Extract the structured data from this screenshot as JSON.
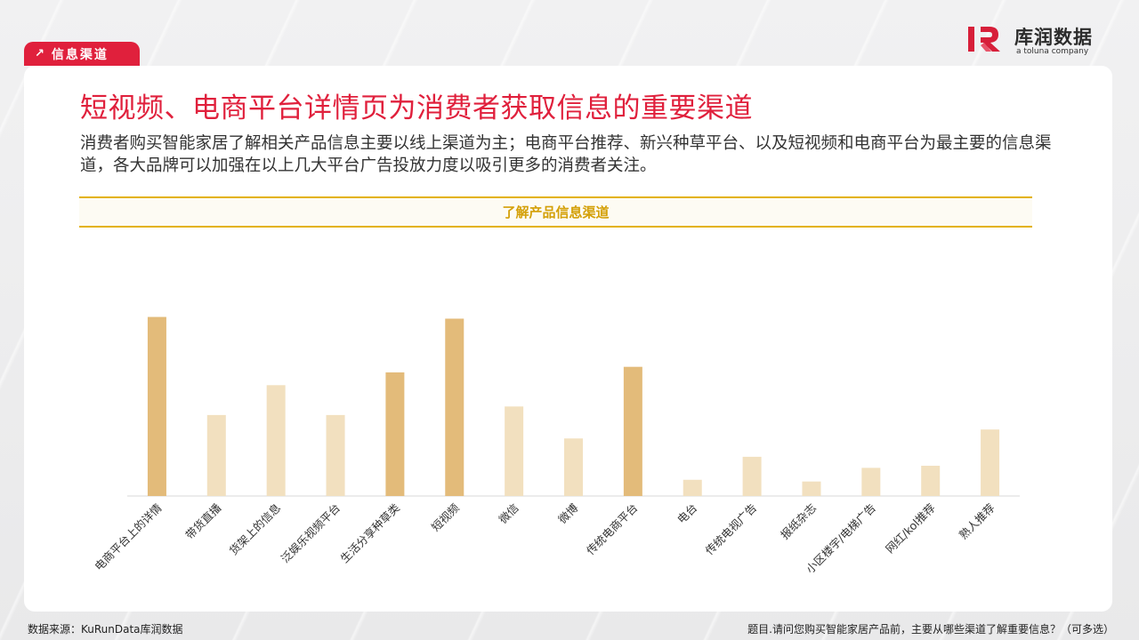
{
  "section_tag": {
    "arrow": "↗",
    "label": "信息渠道"
  },
  "logo": {
    "cn": "库润数据",
    "en": "a toluna company",
    "brand_color": "#d71f3a"
  },
  "title": "短视频、电商平台详情页为消费者获取信息的重要渠道",
  "description": "消费者购买智能家居了解相关产品信息主要以线上渠道为主；电商平台推荐、新兴种草平台、以及短视频和电商平台为最主要的信息渠道，各大品牌可以加强在以上几大平台广告投放力度以吸引更多的消费者关注。",
  "footer": {
    "source": "数据来源：KuRunData库润数据",
    "question": "题目.请问您购买智能家居产品前，主要从哪些渠道了解重要信息？（可多选）"
  },
  "colors": {
    "accent": "#e0203c",
    "gold": "#e3b20b",
    "bar_highlight": "#e3bb7a",
    "bar_normal": "#f2e0bf"
  },
  "chart_data": {
    "type": "bar",
    "title": "了解产品信息渠道",
    "categories": [
      "电商平台上的详情",
      "带货直播",
      "货架上的信息",
      "泛娱乐视频平台",
      "生活分享种草类",
      "短视频",
      "微信",
      "微博",
      "传统电商平台",
      "电台",
      "传统电视广告",
      "报纸杂志",
      "小区楼宇/电梯广告",
      "网红/kol推荐",
      "熟人推荐"
    ],
    "values": [
      42,
      19,
      26,
      19,
      29,
      41.6,
      21,
      13.5,
      30.3,
      3.8,
      9.2,
      3.4,
      6.6,
      7.1,
      15.6
    ],
    "highlight": [
      true,
      false,
      false,
      false,
      true,
      true,
      false,
      false,
      true,
      false,
      false,
      false,
      false,
      false,
      false
    ],
    "ylim": [
      0,
      45
    ],
    "grid": false,
    "xlabel": "",
    "ylabel": ""
  }
}
